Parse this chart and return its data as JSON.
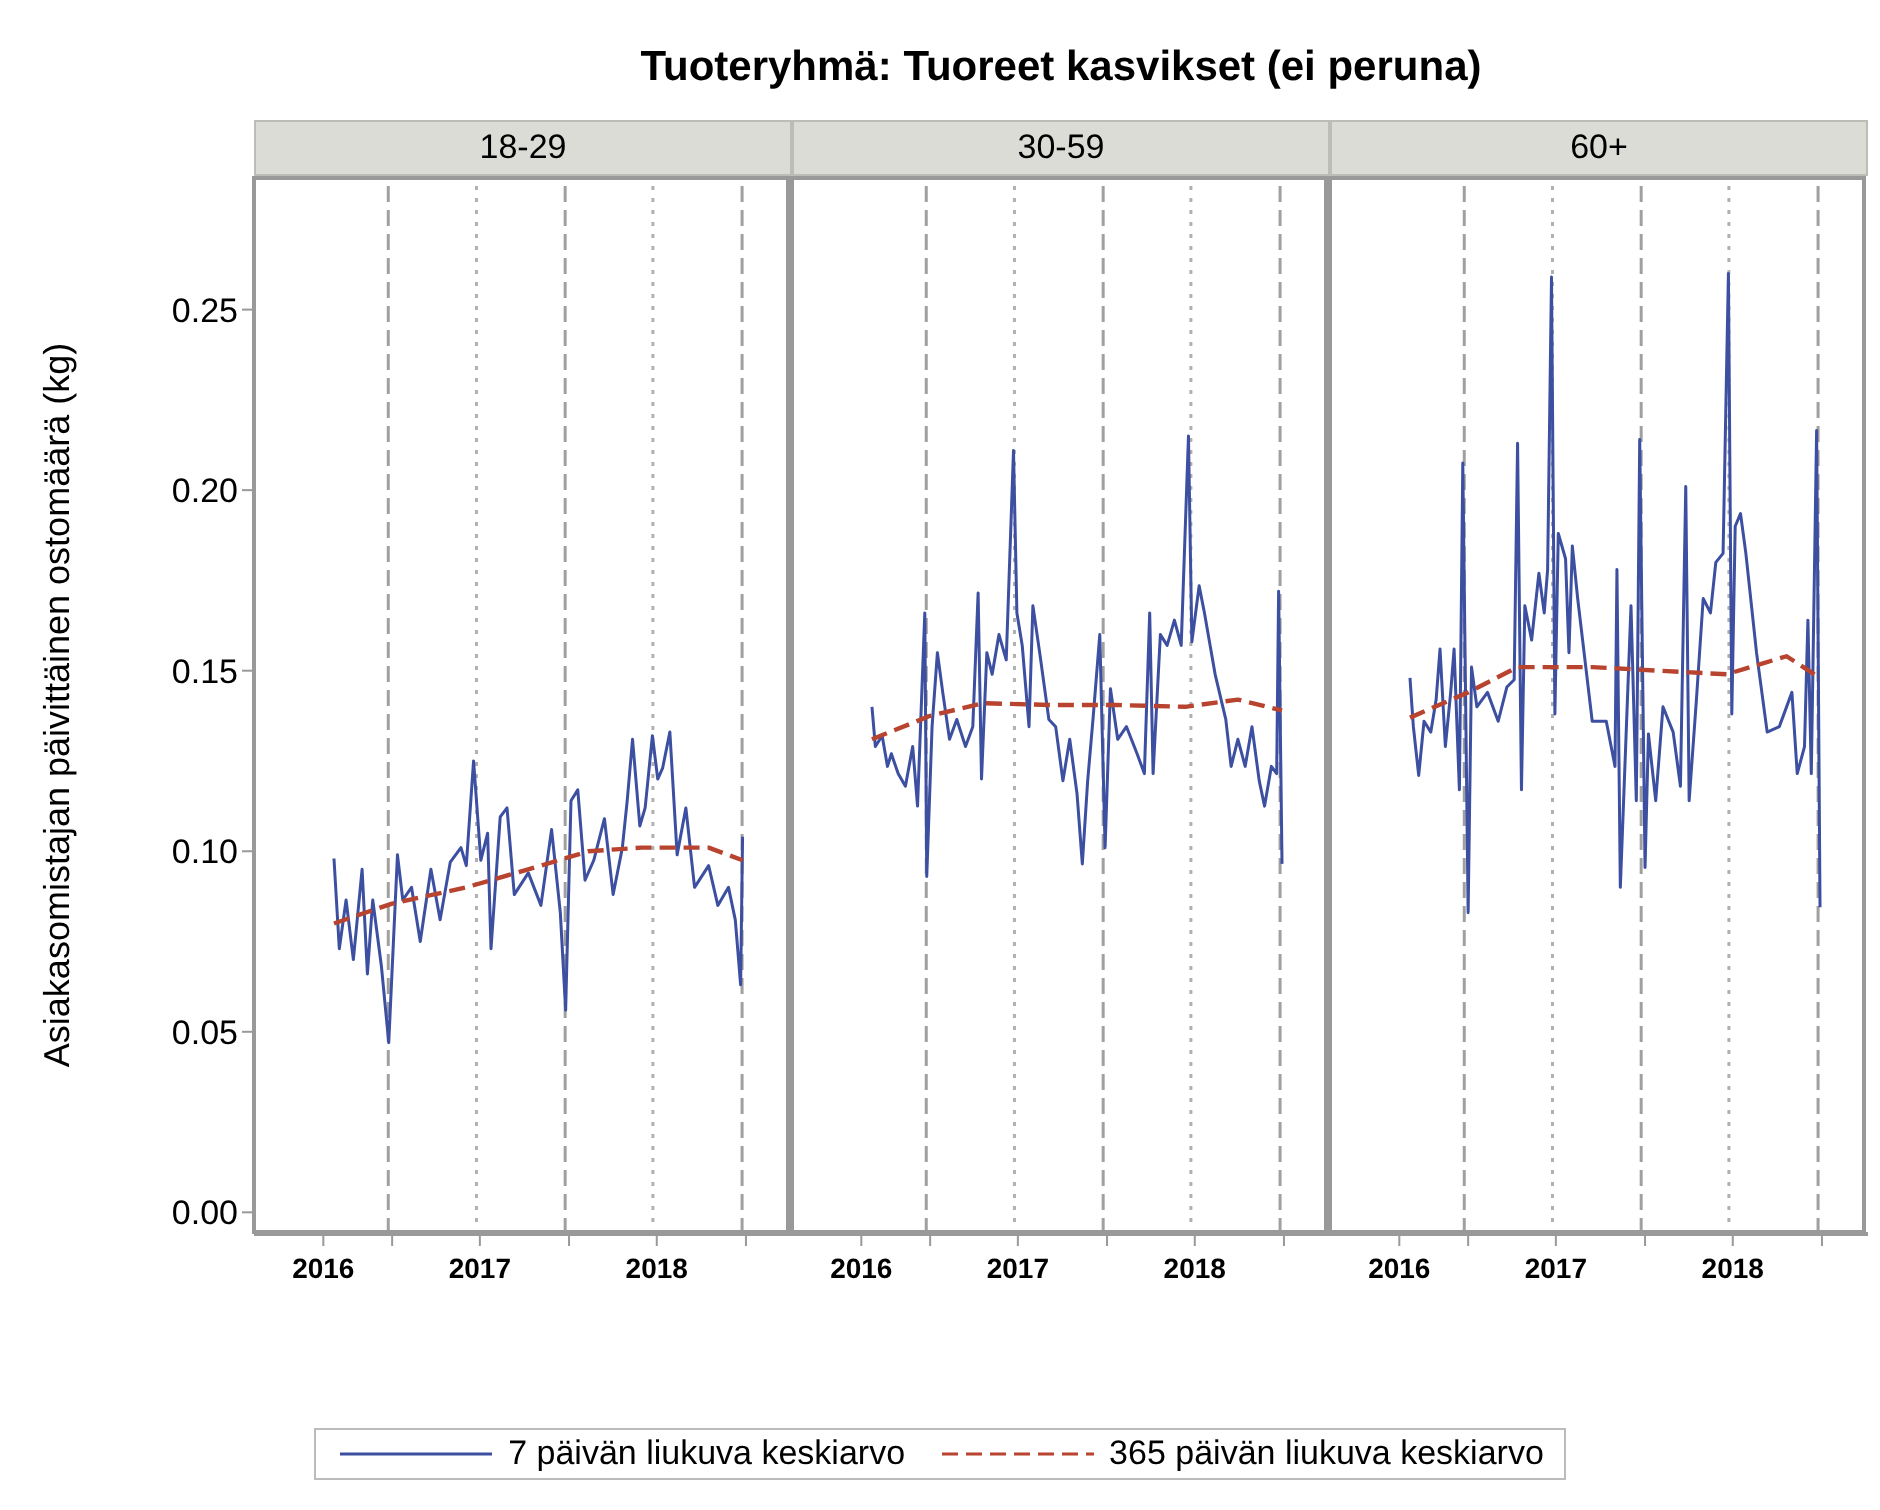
{
  "chart_data": [
    {
      "type": "line",
      "title": "Tuoteryhmä: Tuoreet kasvikset (ei peruna)",
      "subtitle": "18-29",
      "ylabel": "Asiakasomistajan päivittäinen ostomäärä (kg)",
      "legend": "bottom",
      "xlim": [
        "2016-03-22",
        "2019-04-06"
      ],
      "xticks": [
        {
          "value": "2016-08-12",
          "label": "2016"
        },
        {
          "value": "2017-01-01",
          "label": null
        },
        {
          "value": "2017-07-01",
          "label": "2017"
        },
        {
          "value": "2018-01-01",
          "label": null
        },
        {
          "value": "2018-07-01",
          "label": "2018"
        },
        {
          "value": "2019-01-01",
          "label": null
        }
      ],
      "ylim": [
        -0.006,
        0.287
      ],
      "yticks": [
        {
          "value": 0,
          "label": "0.00"
        },
        {
          "value": 0.05,
          "label": "0.05"
        },
        {
          "value": 0.1,
          "label": "0.10"
        },
        {
          "value": 0.15,
          "label": "0.15"
        },
        {
          "value": 0.2,
          "label": "0.20"
        },
        {
          "value": 0.25,
          "label": "0.25"
        }
      ],
      "ref_lines": [
        {
          "axis": "x",
          "value": "2016-12-24",
          "label": null,
          "color": "#a0a0a0",
          "line_style": "dashed"
        },
        {
          "axis": "x",
          "value": "2017-12-24",
          "label": null,
          "color": "#a0a0a0",
          "line_style": "dashed"
        },
        {
          "axis": "x",
          "value": "2018-12-24",
          "label": null,
          "color": "#a0a0a0",
          "line_style": "dashed"
        },
        {
          "axis": "x",
          "value": "2017-06-24",
          "label": null,
          "color": "#b0b0b0",
          "line_style": "dotted"
        },
        {
          "axis": "x",
          "value": "2018-06-23",
          "label": null,
          "color": "#b0b0b0",
          "line_style": "dotted"
        }
      ],
      "series": [
        {
          "name": "7 päivän liukuva keskiarvo",
          "color": "#3c4fa0",
          "line_style": "solid",
          "x": [
            "2016-09-03",
            "2016-09-14",
            "2016-09-28",
            "2016-10-13",
            "2016-10-31",
            "2016-11-11",
            "2016-11-22",
            "2016-12-10",
            "2016-12-25",
            "2017-01-12",
            "2017-01-23",
            "2017-02-10",
            "2017-02-28",
            "2017-03-22",
            "2017-04-10",
            "2017-05-01",
            "2017-05-23",
            "2017-06-03",
            "2017-06-18",
            "2017-07-03",
            "2017-07-17",
            "2017-07-24",
            "2017-08-12",
            "2017-08-26",
            "2017-09-10",
            "2017-10-09",
            "2017-11-04",
            "2017-11-26",
            "2017-12-14",
            "2017-12-25",
            "2018-01-05",
            "2018-01-19",
            "2018-02-03",
            "2018-02-21",
            "2018-03-15",
            "2018-04-02",
            "2018-04-21",
            "2018-05-01",
            "2018-05-12",
            "2018-05-27",
            "2018-06-07",
            "2018-06-22",
            "2018-07-03",
            "2018-07-13",
            "2018-07-28",
            "2018-08-12",
            "2018-08-30",
            "2018-09-17",
            "2018-10-16",
            "2018-11-04",
            "2018-11-26",
            "2018-12-10",
            "2018-12-21",
            "2018-12-25"
          ],
          "values": [
            0.098,
            0.073,
            0.0865,
            0.07,
            0.095,
            0.066,
            0.0865,
            0.068,
            0.047,
            0.099,
            0.0865,
            0.09,
            0.075,
            0.095,
            0.081,
            0.097,
            0.101,
            0.096,
            0.125,
            0.0975,
            0.105,
            0.073,
            0.1095,
            0.112,
            0.088,
            0.094,
            0.085,
            0.106,
            0.083,
            0.056,
            0.114,
            0.117,
            0.092,
            0.0975,
            0.109,
            0.088,
            0.101,
            0.114,
            0.131,
            0.107,
            0.112,
            0.132,
            0.12,
            0.123,
            0.133,
            0.099,
            0.112,
            0.09,
            0.096,
            0.085,
            0.09,
            0.081,
            0.063,
            0.104
          ]
        },
        {
          "name": "365 päivän liukuva keskiarvo",
          "color": "#b8432f",
          "line_style": "dashed",
          "x": [
            "2016-09-03",
            "2017-01-01",
            "2017-06-03",
            "2017-11-04",
            "2018-02-10",
            "2018-05-31",
            "2018-10-16",
            "2018-12-25"
          ],
          "values": [
            0.08,
            0.0855,
            0.09,
            0.096,
            0.1,
            0.101,
            0.101,
            0.0975
          ]
        }
      ]
    },
    {
      "type": "line",
      "subtitle": "30-59",
      "tick_labels": "x",
      "xlim": [
        "2016-03-22",
        "2019-04-06"
      ],
      "xticks": [
        {
          "value": "2016-08-12",
          "label": "2016"
        },
        {
          "value": "2017-01-01",
          "label": null
        },
        {
          "value": "2017-07-01",
          "label": "2017"
        },
        {
          "value": "2018-01-01",
          "label": null
        },
        {
          "value": "2018-07-01",
          "label": "2018"
        },
        {
          "value": "2019-01-01",
          "label": null
        }
      ],
      "ylim": [
        -0.006,
        0.287
      ],
      "ref_lines": [
        {
          "axis": "x",
          "value": "2016-12-24",
          "label": null,
          "color": "#a0a0a0",
          "line_style": "dashed"
        },
        {
          "axis": "x",
          "value": "2017-12-24",
          "label": null,
          "color": "#a0a0a0",
          "line_style": "dashed"
        },
        {
          "axis": "x",
          "value": "2018-12-24",
          "label": null,
          "color": "#a0a0a0",
          "line_style": "dashed"
        },
        {
          "axis": "x",
          "value": "2017-06-24",
          "label": null,
          "color": "#b0b0b0",
          "line_style": "dotted"
        },
        {
          "axis": "x",
          "value": "2018-06-23",
          "label": null,
          "color": "#b0b0b0",
          "line_style": "dotted"
        }
      ],
      "series": [
        {
          "color": "#3c4fa0",
          "line_style": "solid",
          "x": [
            "2016-09-03",
            "2016-09-10",
            "2016-09-24",
            "2016-10-05",
            "2016-10-13",
            "2016-10-27",
            "2016-11-11",
            "2016-11-26",
            "2016-12-06",
            "2016-12-21",
            "2016-12-25",
            "2017-01-05",
            "2017-01-16",
            "2017-01-27",
            "2017-02-10",
            "2017-02-25",
            "2017-03-15",
            "2017-03-30",
            "2017-04-10",
            "2017-04-17",
            "2017-04-28",
            "2017-05-09",
            "2017-05-23",
            "2017-06-07",
            "2017-06-22",
            "2017-06-29",
            "2017-07-10",
            "2017-07-24",
            "2017-08-01",
            "2017-08-15",
            "2017-09-03",
            "2017-09-17",
            "2017-10-02",
            "2017-10-16",
            "2017-10-31",
            "2017-11-11",
            "2017-11-22",
            "2017-12-03",
            "2017-12-17",
            "2017-12-28",
            "2018-01-08",
            "2018-01-23",
            "2018-02-10",
            "2018-03-04",
            "2018-03-19",
            "2018-03-30",
            "2018-04-06",
            "2018-04-21",
            "2018-05-05",
            "2018-05-20",
            "2018-06-03",
            "2018-06-18",
            "2018-06-25",
            "2018-07-10",
            "2018-07-21",
            "2018-08-12",
            "2018-09-03",
            "2018-09-14",
            "2018-09-28",
            "2018-10-13",
            "2018-10-27",
            "2018-11-11",
            "2018-11-22",
            "2018-12-06",
            "2018-12-17",
            "2018-12-21",
            "2018-12-28"
          ],
          "values": [
            0.14,
            0.129,
            0.132,
            0.1235,
            0.127,
            0.1215,
            0.118,
            0.129,
            0.1125,
            0.166,
            0.093,
            0.1345,
            0.155,
            0.144,
            0.131,
            0.1365,
            0.129,
            0.1345,
            0.1715,
            0.12,
            0.155,
            0.149,
            0.16,
            0.153,
            0.211,
            0.166,
            0.157,
            0.1345,
            0.168,
            0.155,
            0.1365,
            0.1345,
            0.1195,
            0.131,
            0.116,
            0.0965,
            0.1195,
            0.1365,
            0.16,
            0.101,
            0.145,
            0.131,
            0.1345,
            0.127,
            0.1215,
            0.166,
            0.1215,
            0.16,
            0.157,
            0.164,
            0.157,
            0.215,
            0.158,
            0.1735,
            0.166,
            0.149,
            0.1365,
            0.1235,
            0.131,
            0.1235,
            0.1345,
            0.1195,
            0.1125,
            0.1235,
            0.1215,
            0.172,
            0.0965
          ]
        },
        {
          "color": "#b8432f",
          "line_style": "dashed",
          "x": [
            "2016-09-03",
            "2017-01-01",
            "2017-04-21",
            "2017-09-06",
            "2018-01-23",
            "2018-06-11",
            "2018-09-28",
            "2018-12-28"
          ],
          "values": [
            0.131,
            0.1375,
            0.141,
            0.1405,
            0.1405,
            0.14,
            0.142,
            0.139
          ]
        }
      ]
    },
    {
      "type": "line",
      "subtitle": "60+",
      "tick_labels": "x",
      "xlim": [
        "2016-03-22",
        "2019-04-06"
      ],
      "xticks": [
        {
          "value": "2016-08-12",
          "label": "2016"
        },
        {
          "value": "2017-01-01",
          "label": null
        },
        {
          "value": "2017-07-01",
          "label": "2017"
        },
        {
          "value": "2018-01-01",
          "label": null
        },
        {
          "value": "2018-07-01",
          "label": "2018"
        },
        {
          "value": "2019-01-01",
          "label": null
        }
      ],
      "ylim": [
        -0.006,
        0.287
      ],
      "ref_lines": [
        {
          "axis": "x",
          "value": "2016-12-24",
          "label": null,
          "color": "#a0a0a0",
          "line_style": "dashed"
        },
        {
          "axis": "x",
          "value": "2017-12-24",
          "label": null,
          "color": "#a0a0a0",
          "line_style": "dashed"
        },
        {
          "axis": "x",
          "value": "2018-12-24",
          "label": null,
          "color": "#a0a0a0",
          "line_style": "dashed"
        },
        {
          "axis": "x",
          "value": "2017-06-24",
          "label": null,
          "color": "#b0b0b0",
          "line_style": "dotted"
        },
        {
          "axis": "x",
          "value": "2018-06-23",
          "label": null,
          "color": "#b0b0b0",
          "line_style": "dotted"
        }
      ],
      "series": [
        {
          "color": "#3c4fa0",
          "line_style": "solid",
          "x": [
            "2016-09-03",
            "2016-09-10",
            "2016-09-21",
            "2016-10-02",
            "2016-10-16",
            "2016-10-27",
            "2016-11-04",
            "2016-11-15",
            "2016-11-26",
            "2016-12-03",
            "2016-12-14",
            "2016-12-21",
            "2017-01-01",
            "2017-01-08",
            "2017-01-19",
            "2017-02-10",
            "2017-03-04",
            "2017-03-22",
            "2017-04-06",
            "2017-04-13",
            "2017-04-21",
            "2017-04-28",
            "2017-05-12",
            "2017-05-27",
            "2017-06-07",
            "2017-06-14",
            "2017-06-22",
            "2017-06-29",
            "2017-07-06",
            "2017-07-21",
            "2017-07-28",
            "2017-08-04",
            "2017-08-15",
            "2017-08-30",
            "2017-09-14",
            "2017-10-13",
            "2017-10-31",
            "2017-11-04",
            "2017-11-11",
            "2017-11-22",
            "2017-12-03",
            "2017-12-14",
            "2017-12-21",
            "2018-01-01",
            "2018-01-08",
            "2018-01-23",
            "2018-02-07",
            "2018-02-28",
            "2018-03-15",
            "2018-03-26",
            "2018-04-02",
            "2018-04-17",
            "2018-05-01",
            "2018-05-16",
            "2018-05-27",
            "2018-06-11",
            "2018-06-22",
            "2018-06-29",
            "2018-07-06",
            "2018-07-17",
            "2018-07-28",
            "2018-08-19",
            "2018-09-10",
            "2018-10-05",
            "2018-10-31",
            "2018-11-11",
            "2018-11-26",
            "2018-12-03",
            "2018-12-10",
            "2018-12-21",
            "2018-12-28"
          ],
          "values": [
            0.148,
            0.1345,
            0.121,
            0.136,
            0.133,
            0.142,
            0.156,
            0.129,
            0.144,
            0.156,
            0.117,
            0.2075,
            0.083,
            0.151,
            0.14,
            0.144,
            0.136,
            0.1455,
            0.1475,
            0.213,
            0.117,
            0.168,
            0.1585,
            0.177,
            0.166,
            0.178,
            0.259,
            0.138,
            0.188,
            0.181,
            0.155,
            0.1845,
            0.17,
            0.153,
            0.136,
            0.136,
            0.1235,
            0.178,
            0.09,
            0.129,
            0.168,
            0.114,
            0.214,
            0.0955,
            0.1325,
            0.114,
            0.14,
            0.133,
            0.118,
            0.201,
            0.114,
            0.142,
            0.17,
            0.166,
            0.18,
            0.1825,
            0.26,
            0.138,
            0.19,
            0.1935,
            0.1825,
            0.155,
            0.133,
            0.1345,
            0.144,
            0.1215,
            0.129,
            0.164,
            0.1215,
            0.2165,
            0.0845
          ]
        },
        {
          "color": "#b8432f",
          "line_style": "dashed",
          "x": [
            "2016-09-03",
            "2017-01-01",
            "2017-04-13",
            "2017-09-14",
            "2018-01-30",
            "2018-06-18",
            "2018-10-20",
            "2018-12-28"
          ],
          "values": [
            0.137,
            0.144,
            0.151,
            0.151,
            0.15,
            0.149,
            0.154,
            0.148
          ]
        }
      ]
    }
  ]
}
